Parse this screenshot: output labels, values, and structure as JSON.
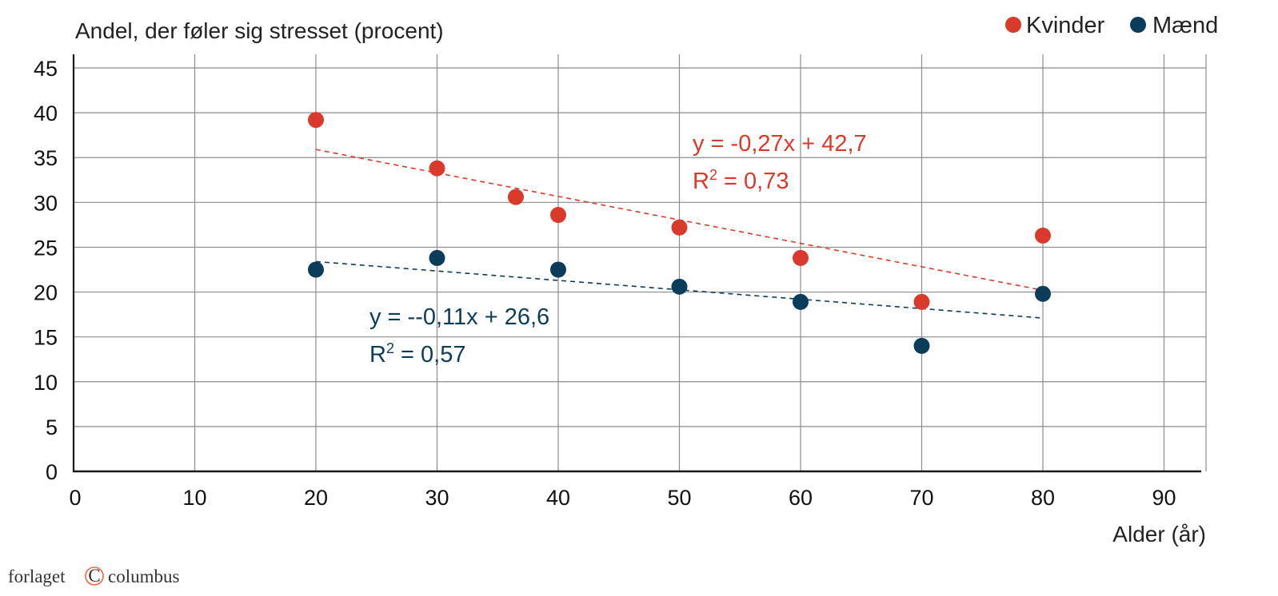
{
  "chart_data": {
    "type": "scatter",
    "title": "",
    "ylabel": "Andel, der føler sig stresset (procent)",
    "xlabel": "Alder (år)",
    "xlim": [
      0,
      93
    ],
    "ylim": [
      0,
      45
    ],
    "xticks": [
      "0",
      "10",
      "20",
      "30",
      "40",
      "50",
      "60",
      "70",
      "80",
      "90"
    ],
    "xtick_values": [
      0,
      10,
      20,
      30,
      40,
      50,
      60,
      70,
      80,
      90
    ],
    "yticks": [
      "0",
      "5",
      "10",
      "15",
      "20",
      "25",
      "30",
      "35",
      "40",
      "45"
    ],
    "ytick_values": [
      0,
      5,
      10,
      15,
      20,
      25,
      30,
      35,
      40,
      45
    ],
    "grid": true,
    "legend_position": "top-right",
    "series": [
      {
        "name": "Kvinder",
        "color": "#d93a2b",
        "points": [
          [
            20,
            39.2
          ],
          [
            30,
            33.8
          ],
          [
            36.5,
            30.6
          ],
          [
            40,
            28.6
          ],
          [
            50,
            27.2
          ],
          [
            60,
            23.8
          ],
          [
            70,
            18.9
          ],
          [
            80,
            26.3
          ]
        ],
        "trendline": {
          "x": [
            20,
            80
          ],
          "y": [
            35.9,
            20.2
          ]
        },
        "equation": "y = -0,27x + 42,7",
        "r2_prefix": "R",
        "r2_sup": "2",
        "r2_value": " = 0,73"
      },
      {
        "name": "Mænd",
        "color": "#0b3d5a",
        "points": [
          [
            20,
            22.5
          ],
          [
            30,
            23.8
          ],
          [
            40,
            22.5
          ],
          [
            50,
            20.6
          ],
          [
            60,
            18.9
          ],
          [
            70,
            14.0
          ],
          [
            80,
            19.8
          ]
        ],
        "trendline": {
          "x": [
            20,
            80
          ],
          "y": [
            23.4,
            17.1
          ]
        },
        "equation": "y = --0,11x + 26,6",
        "r2_prefix": "R",
        "r2_sup": "2",
        "r2_value": " = 0,57"
      }
    ]
  },
  "brand": {
    "name_left": "forlaget",
    "symbol": "C",
    "name_right": "columbus",
    "symbol_color": "#e8693c"
  }
}
